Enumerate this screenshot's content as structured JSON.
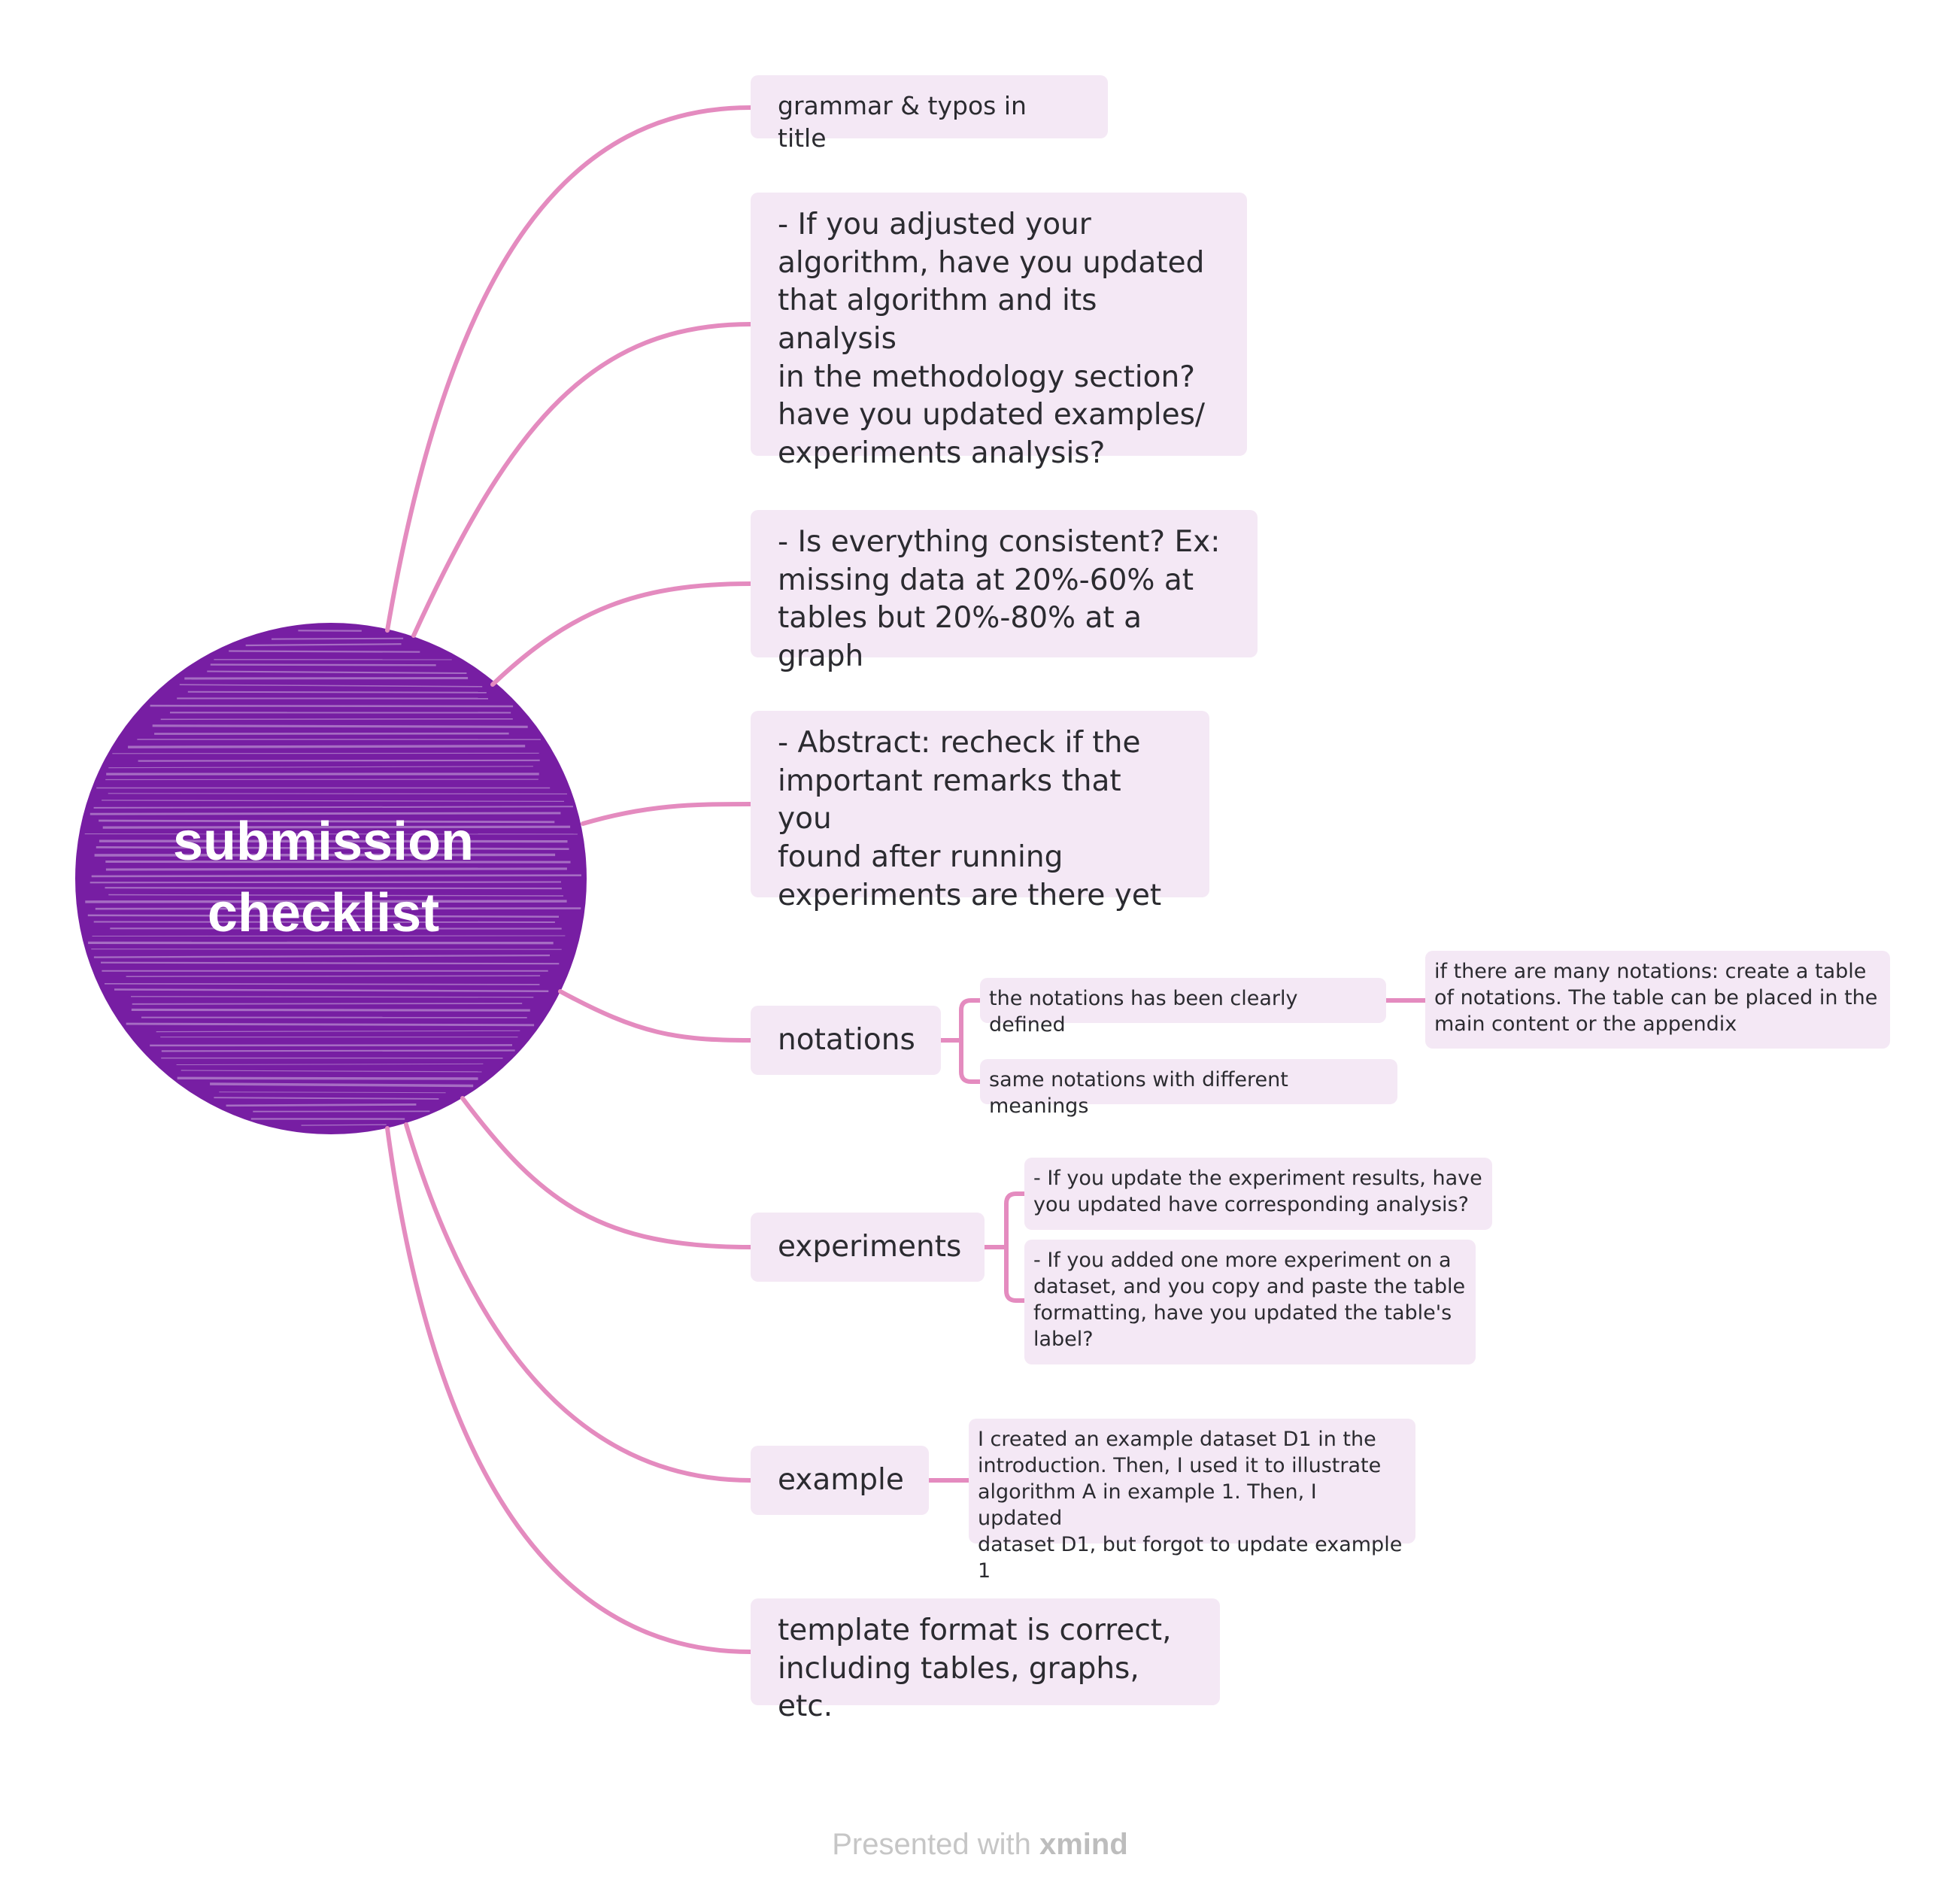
{
  "root": {
    "label": "submission\nchecklist",
    "color": "#771ea3"
  },
  "branch_color": "#e48bbf",
  "node_fill": "#f4e8f5",
  "topics": {
    "grammar": "grammar & typos in title",
    "algorithm": "- If you adjusted your\nalgorithm, have you updated\nthat algorithm and its analysis\nin the methodology section?\nhave you updated examples/\nexperiments analysis?",
    "consistency": "- Is everything consistent? Ex:\nmissing data at 20%-60% at\ntables but 20%-80% at a graph",
    "abstract": "- Abstract: recheck if the\nimportant remarks that you\nfound after running\nexperiments are there yet",
    "notations": {
      "label": "notations",
      "clearly_defined": "the notations has been clearly defined",
      "table_hint": "if there are many notations: create a table\nof notations. The table can be placed in the\nmain content or the appendix",
      "same_notations": "same notations with different meanings"
    },
    "experiments": {
      "label": "experiments",
      "updated_results": "- If you update the experiment results, have\nyou updated have corresponding analysis?",
      "added_experiment": "- If you added one more experiment on a\ndataset, and you copy and paste the table\nformatting, have you updated the table's\nlabel?"
    },
    "example": {
      "label": "example",
      "detail": "I created an example dataset D1 in the\nintroduction. Then, I used it to illustrate\nalgorithm A in example 1. Then, I updated\ndataset D1, but forgot to update example 1"
    },
    "template": "template format is correct,\nincluding tables, graphs, etc."
  },
  "footer": {
    "prefix": "Presented with",
    "brand": "xmind"
  }
}
